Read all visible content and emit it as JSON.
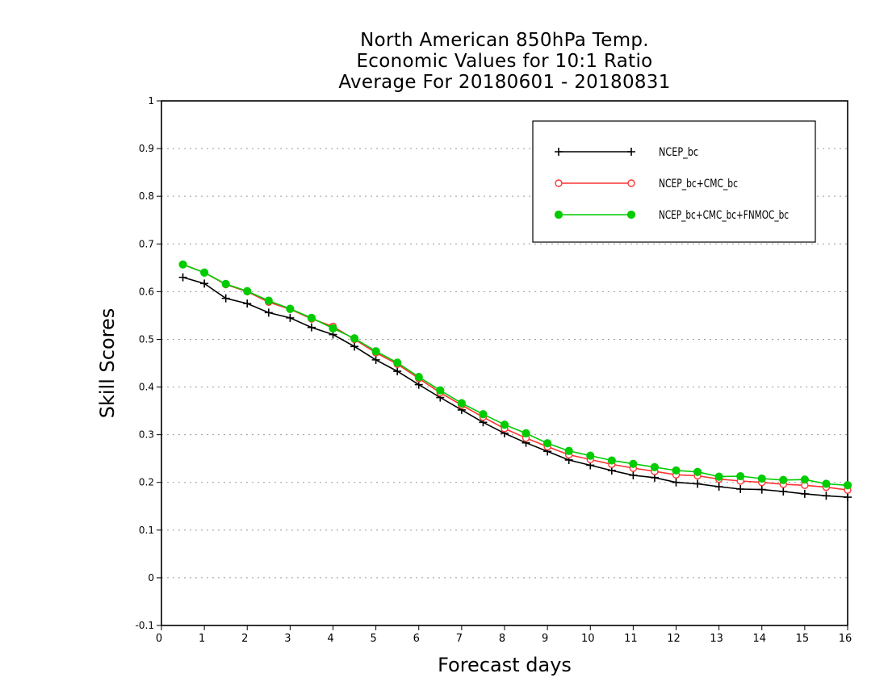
{
  "chart_data": {
    "type": "line",
    "title_lines": [
      "North American 850hPa Temp.",
      "Economic Values for 10:1 Ratio",
      "Average For 20180601 - 20180831"
    ],
    "xlabel": "Forecast days",
    "ylabel": "Skill Scores",
    "xlim": [
      0,
      16
    ],
    "ylim": [
      -0.1,
      1
    ],
    "xticks": [
      0,
      1,
      2,
      3,
      4,
      5,
      6,
      7,
      8,
      9,
      10,
      11,
      12,
      13,
      14,
      15,
      16
    ],
    "xtick_labels": [
      "0",
      "1",
      "2",
      "3",
      "4",
      "5",
      "6",
      "7",
      "8",
      "9",
      "10",
      "11",
      "12",
      "13",
      "14",
      "15",
      "16"
    ],
    "yticks": [
      -0.1,
      0,
      0.1,
      0.2,
      0.3,
      0.4,
      0.5,
      0.6,
      0.7,
      0.8,
      0.9,
      1
    ],
    "ytick_labels": [
      "-0.1",
      "0",
      "0.1",
      "0.2",
      "0.3",
      "0.4",
      "0.5",
      "0.6",
      "0.7",
      "0.8",
      "0.9",
      "1"
    ],
    "grid": "horizontal-dotted",
    "legend_position": "top-right",
    "x": [
      0.5,
      1,
      1.5,
      2,
      2.5,
      3,
      3.5,
      4,
      4.5,
      5,
      5.5,
      6,
      6.5,
      7,
      7.5,
      8,
      8.5,
      9,
      9.5,
      10,
      10.5,
      11,
      11.5,
      12,
      12.5,
      13,
      13.5,
      14,
      14.5,
      15,
      15.5,
      16
    ],
    "series": [
      {
        "name": "NCEP_bc",
        "color": "#000000",
        "marker": "plus",
        "values": [
          0.63,
          0.617,
          0.586,
          0.575,
          0.556,
          0.545,
          0.525,
          0.51,
          0.485,
          0.457,
          0.433,
          0.405,
          0.378,
          0.352,
          0.326,
          0.303,
          0.283,
          0.265,
          0.247,
          0.236,
          0.225,
          0.215,
          0.21,
          0.2,
          0.197,
          0.191,
          0.186,
          0.185,
          0.181,
          0.176,
          0.172,
          0.169
        ]
      },
      {
        "name": "NCEP_bc+CMC_bc",
        "color": "#ff3333",
        "marker": "open-circle",
        "values": [
          0.657,
          0.64,
          0.615,
          0.6,
          0.578,
          0.563,
          0.543,
          0.527,
          0.5,
          0.472,
          0.448,
          0.418,
          0.388,
          0.362,
          0.337,
          0.313,
          0.293,
          0.275,
          0.258,
          0.248,
          0.238,
          0.23,
          0.223,
          0.216,
          0.214,
          0.207,
          0.203,
          0.2,
          0.196,
          0.194,
          0.19,
          0.184
        ]
      },
      {
        "name": "NCEP_bc+CMC_bc+FNMOC_bc",
        "color": "#00cc00",
        "marker": "filled-circle",
        "values": [
          0.657,
          0.64,
          0.616,
          0.601,
          0.581,
          0.564,
          0.545,
          0.523,
          0.502,
          0.475,
          0.451,
          0.421,
          0.393,
          0.366,
          0.343,
          0.321,
          0.303,
          0.282,
          0.266,
          0.256,
          0.246,
          0.239,
          0.232,
          0.225,
          0.222,
          0.212,
          0.213,
          0.208,
          0.205,
          0.206,
          0.197,
          0.194
        ]
      }
    ]
  }
}
